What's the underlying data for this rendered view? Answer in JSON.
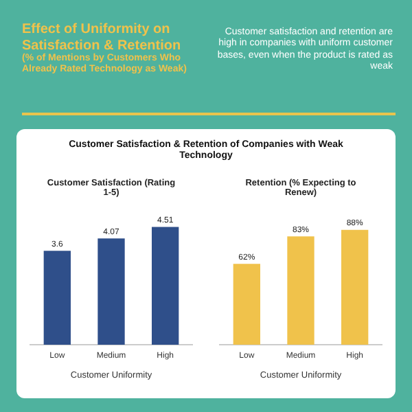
{
  "chart_data": [
    {
      "type": "other",
      "title": "Effect of Uniformity on Satisfaction & Retention",
      "subtitle": "(% of Mentions by Customers Who Already Rated Technology as Weak)",
      "annotations": [
        "Customer satisfaction and retention are high in companies with uniform customer bases, even when the product is rated as weak",
        "Customer Satisfaction & Retention of Companies with Weak Technology"
      ]
    },
    {
      "type": "bar",
      "title": "Customer Satisfaction (Rating 1-5)",
      "xlabel": "Customer Uniformity",
      "categories": [
        "Low",
        "Medium",
        "High"
      ],
      "values": [
        3.6,
        4.07,
        4.51
      ],
      "color": "#2f4f8a",
      "data_labels": true,
      "tick_labels": "x",
      "grid": false,
      "legend": false
    },
    {
      "type": "bar",
      "title": "Retention (% Expecting to Renew)",
      "xlabel": "Customer Uniformity",
      "categories": [
        "Low",
        "Medium",
        "High"
      ],
      "values": [
        62,
        83,
        88
      ],
      "value_labels": [
        "62%",
        "83%",
        "88%"
      ],
      "color": "#f0c24b",
      "tick_labels": "x",
      "grid": false,
      "legend": false
    }
  ]
}
